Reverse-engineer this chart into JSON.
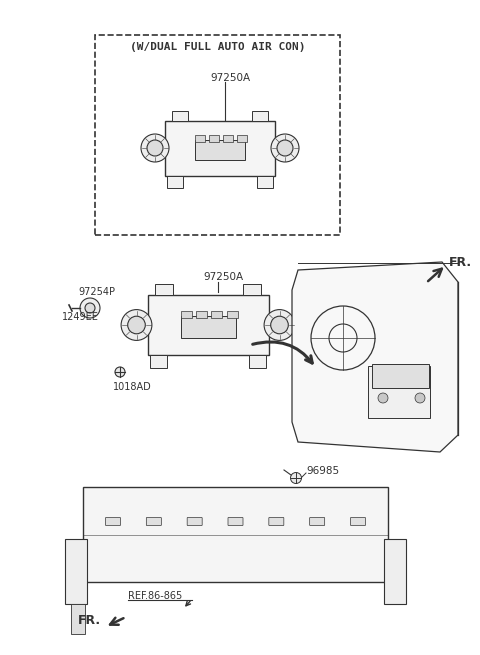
{
  "bg_color": "#ffffff",
  "line_color": "#333333",
  "labels": {
    "w_dual": "(W/DUAL FULL AUTO AIR CON)",
    "97250A_top": "97250A",
    "97250A_mid": "97250A",
    "97254P": "97254P",
    "1249EE": "1249EE",
    "1018AD": "1018AD",
    "FR_top": "FR.",
    "FR_bot": "FR.",
    "96985": "96985",
    "ref": "REF.86-865"
  }
}
